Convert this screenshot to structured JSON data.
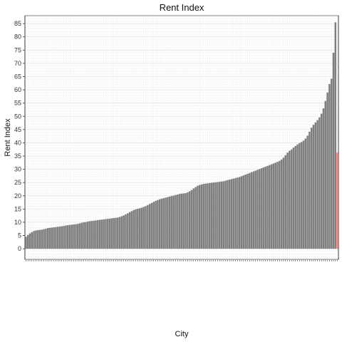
{
  "chart_data": {
    "type": "bar",
    "title": "Rent Index",
    "xlabel": "City",
    "ylabel": "Rent Index",
    "ylim": [
      -4,
      88
    ],
    "yticks": [
      0,
      5,
      10,
      15,
      20,
      25,
      30,
      35,
      40,
      45,
      50,
      55,
      60,
      65,
      70,
      75,
      80,
      85
    ],
    "grid": true,
    "bar_color": "#7f7f7f",
    "highlight_color": "#f08080",
    "highlight_index": 156,
    "values": [
      4.5,
      5.2,
      5.8,
      6.3,
      6.7,
      6.9,
      7.0,
      7.1,
      7.2,
      7.4,
      7.6,
      7.8,
      7.9,
      8.0,
      8.1,
      8.2,
      8.3,
      8.4,
      8.5,
      8.6,
      8.8,
      8.9,
      9.0,
      9.1,
      9.2,
      9.3,
      9.4,
      9.6,
      9.8,
      10.0,
      10.1,
      10.3,
      10.4,
      10.5,
      10.6,
      10.7,
      10.8,
      10.9,
      11.0,
      11.1,
      11.2,
      11.3,
      11.4,
      11.5,
      11.6,
      11.7,
      11.8,
      12.0,
      12.3,
      12.6,
      13.0,
      13.4,
      13.8,
      14.2,
      14.6,
      14.9,
      15.1,
      15.3,
      15.5,
      15.8,
      16.1,
      16.5,
      16.9,
      17.3,
      17.7,
      18.1,
      18.4,
      18.7,
      18.9,
      19.1,
      19.3,
      19.5,
      19.7,
      19.9,
      20.1,
      20.3,
      20.5,
      20.7,
      20.8,
      20.9,
      21.0,
      21.3,
      21.7,
      22.2,
      22.8,
      23.3,
      23.8,
      24.1,
      24.3,
      24.5,
      24.6,
      24.7,
      24.8,
      24.9,
      25.0,
      25.1,
      25.2,
      25.3,
      25.4,
      25.5,
      25.7,
      25.9,
      26.1,
      26.3,
      26.5,
      26.7,
      26.9,
      27.1,
      27.4,
      27.7,
      28.0,
      28.3,
      28.6,
      28.9,
      29.2,
      29.5,
      29.8,
      30.1,
      30.4,
      30.7,
      31.0,
      31.3,
      31.6,
      31.9,
      32.2,
      32.5,
      32.8,
      33.2,
      33.7,
      34.4,
      35.3,
      36.3,
      37.0,
      37.5,
      38.2,
      38.8,
      39.4,
      39.9,
      40.3,
      40.8,
      41.6,
      42.7,
      44.2,
      45.7,
      46.8,
      47.7,
      48.6,
      49.6,
      51.0,
      53.0,
      55.8,
      59.0,
      62.2,
      64.2,
      74.0,
      85.5,
      36.3
    ]
  }
}
